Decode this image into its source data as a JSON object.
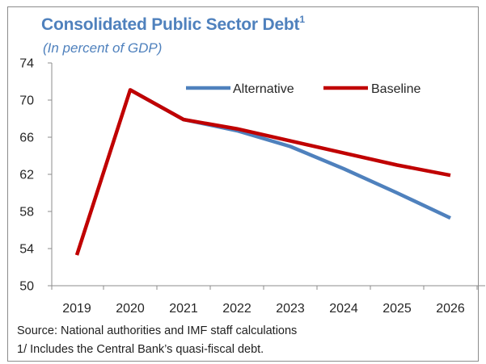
{
  "chart_data": {
    "type": "line",
    "title": "Consolidated Public Sector Debt",
    "title_superscript": "1",
    "subtitle": "(In percent of GDP)",
    "categories": [
      "2019",
      "2020",
      "2021",
      "2022",
      "2023",
      "2024",
      "2025",
      "2026"
    ],
    "ylim": [
      50,
      74
    ],
    "yticks": [
      50,
      54,
      58,
      62,
      66,
      70,
      74
    ],
    "grid": false,
    "legend_position": "top-right",
    "series": [
      {
        "name": "Alternative",
        "color": "#4f81bd",
        "values": [
          null,
          71.1,
          67.9,
          66.7,
          65.0,
          62.6,
          60.0,
          57.3
        ]
      },
      {
        "name": "Baseline",
        "color": "#c00000",
        "values": [
          53.3,
          71.1,
          67.9,
          66.9,
          65.6,
          64.3,
          63.0,
          61.9
        ]
      }
    ],
    "source": "Source: National authorities and IMF staff calculations",
    "footnote": "1/ Includes the Central Bank’s quasi-fiscal debt."
  }
}
